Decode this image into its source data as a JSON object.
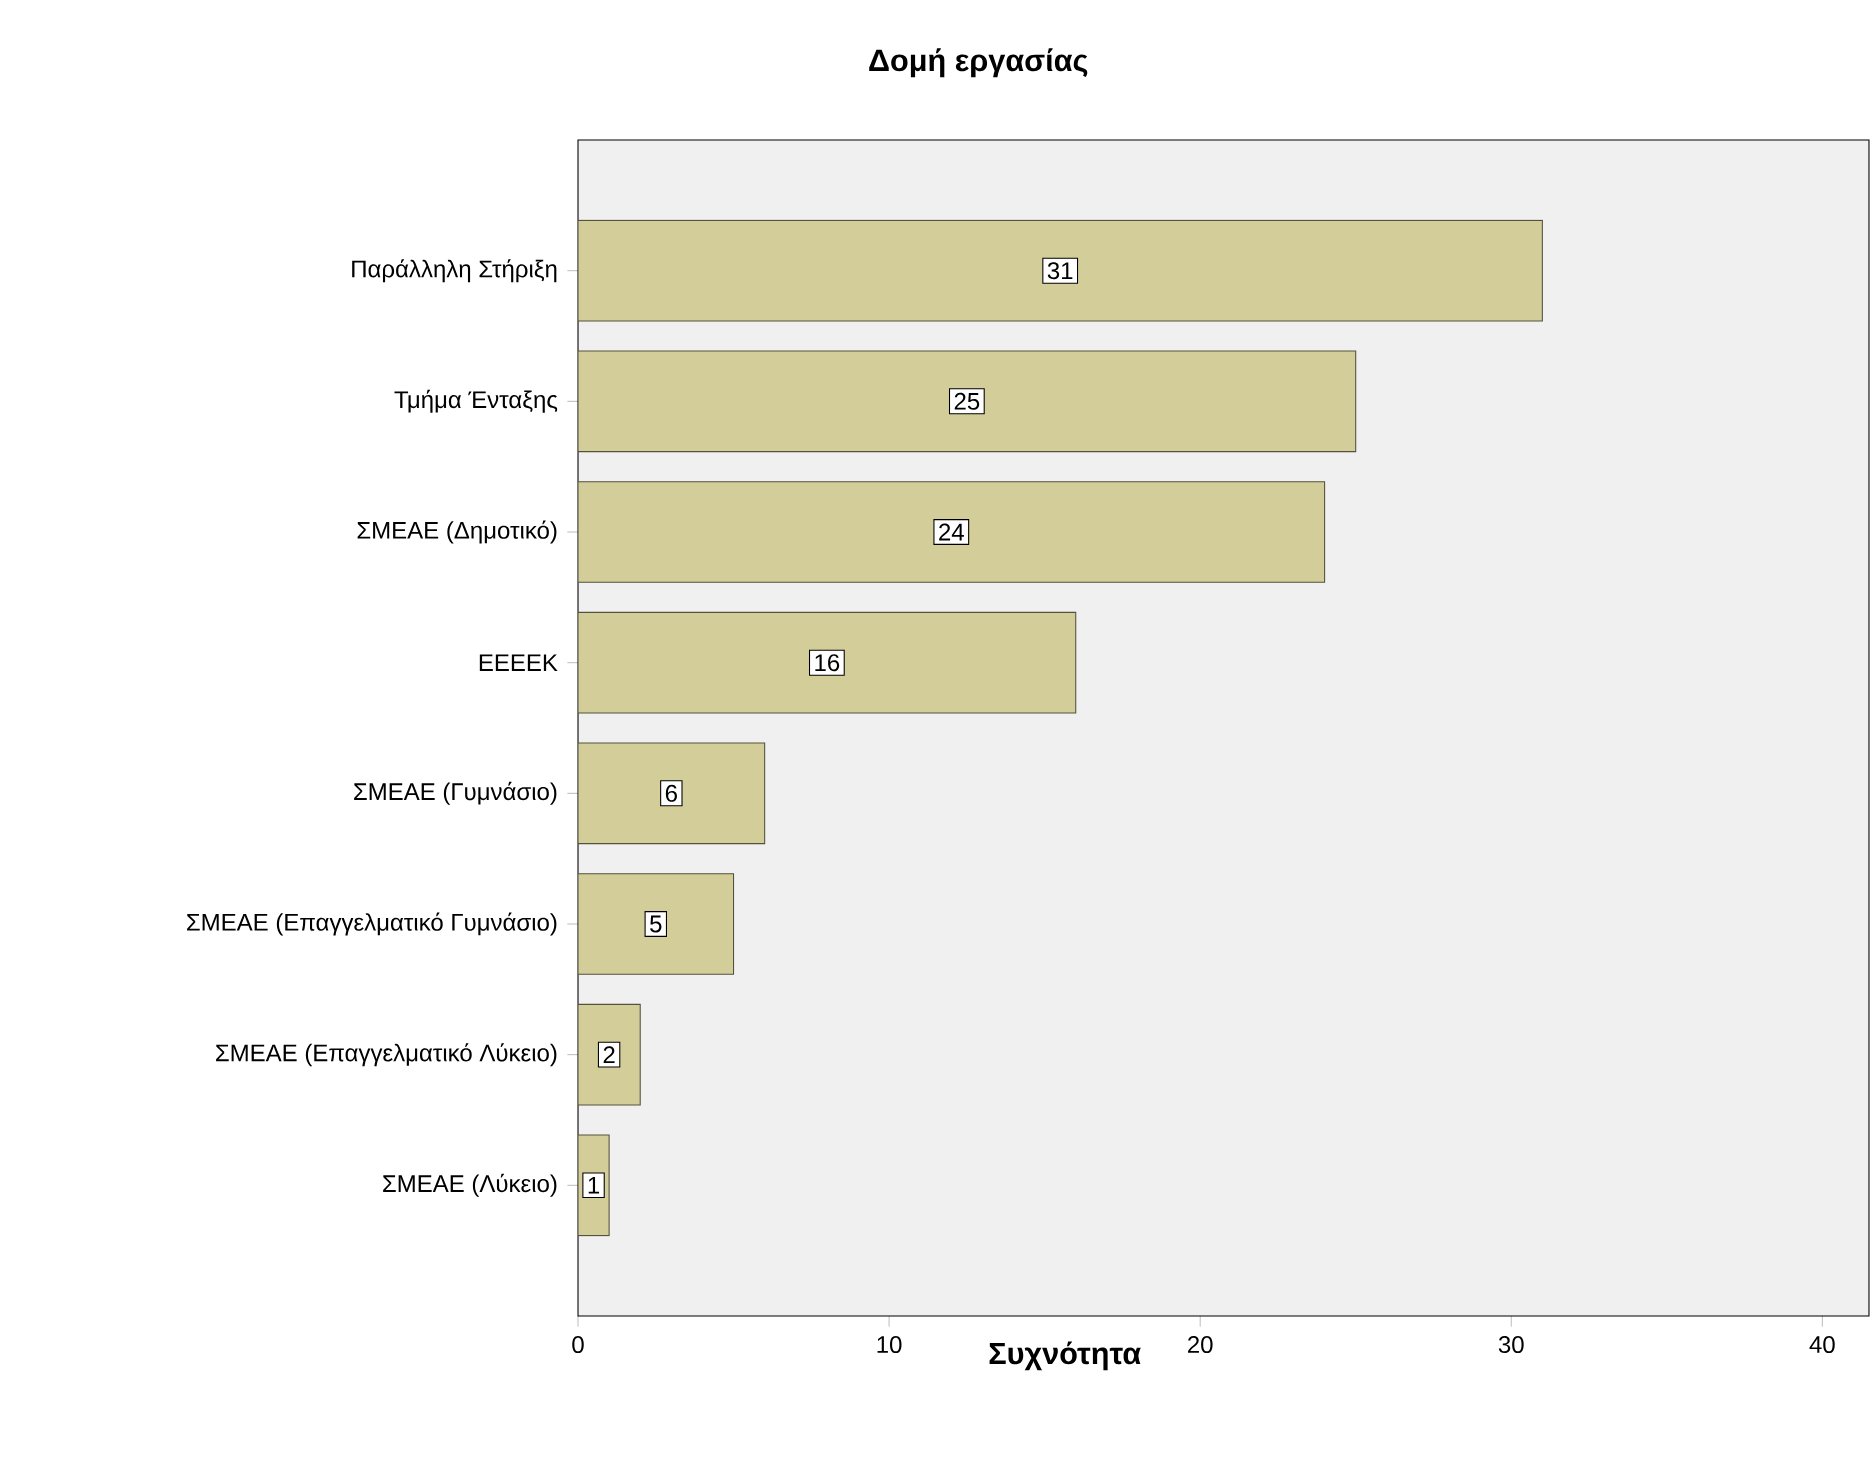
{
  "chart_data": {
    "type": "bar",
    "orientation": "horizontal",
    "title": "Δομή εργασίας",
    "xlabel": "Συχνότητα",
    "categories": [
      "Παράλληλη Στήριξη",
      "Τμήμα Ένταξης",
      "ΣΜΕΑΕ (Δημοτικό)",
      "ΕΕΕΕΚ",
      "ΣΜΕΑΕ (Γυμνάσιο)",
      "ΣΜΕΑΕ (Επαγγελματικό Γυμνάσιο)",
      "ΣΜΕΑΕ (Επαγγελματικό Λύκειο)",
      "ΣΜΕΑΕ (Λύκειο)"
    ],
    "values": [
      31,
      25,
      24,
      16,
      6,
      5,
      2,
      1
    ],
    "color": "#d3ce99",
    "xlim": [
      0,
      41.5
    ],
    "xticks": [
      0,
      10,
      20,
      30,
      40
    ],
    "data_labels": true
  }
}
